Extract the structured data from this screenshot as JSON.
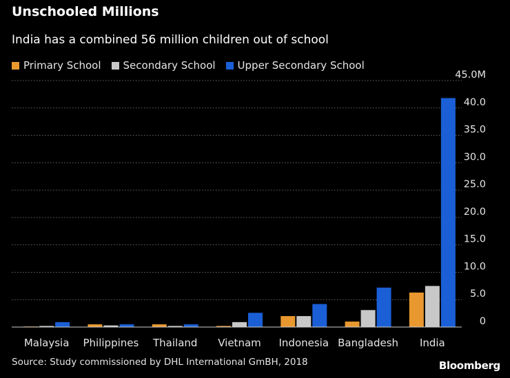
{
  "title": "Unschooled Millions",
  "subtitle": "India has a combined 56 million children out of school",
  "source": "Source: Study commissioned by DHL International GmBH, 2018",
  "brand": "Bloomberg",
  "colors": {
    "background": "#000000",
    "primary": "#e8982e",
    "secondary": "#c8c8c8",
    "upper_secondary": "#1a5fd6"
  },
  "chart_data": {
    "type": "bar",
    "categories": [
      "Malaysia",
      "Philippines",
      "Thailand",
      "Vietnam",
      "Indonesia",
      "Bangladesh",
      "India"
    ],
    "series": [
      {
        "name": "Primary School",
        "color": "#e8982e",
        "values": [
          0.1,
          0.5,
          0.5,
          0.2,
          2.0,
          1.0,
          6.3
        ]
      },
      {
        "name": "Secondary School",
        "color": "#c8c8c8",
        "values": [
          0.2,
          0.3,
          0.2,
          0.9,
          2.0,
          3.1,
          7.5
        ]
      },
      {
        "name": "Upper Secondary School",
        "color": "#1a5fd6",
        "values": [
          0.9,
          0.5,
          0.5,
          2.6,
          4.2,
          7.2,
          41.8
        ]
      }
    ],
    "yticks": [
      "0",
      "5.0",
      "10.0",
      "15.0",
      "20.0",
      "25.0",
      "30.0",
      "35.0",
      "40.0",
      "45.0M"
    ],
    "ylim": [
      0,
      45
    ],
    "grid": true,
    "legend_position": "top-left"
  }
}
